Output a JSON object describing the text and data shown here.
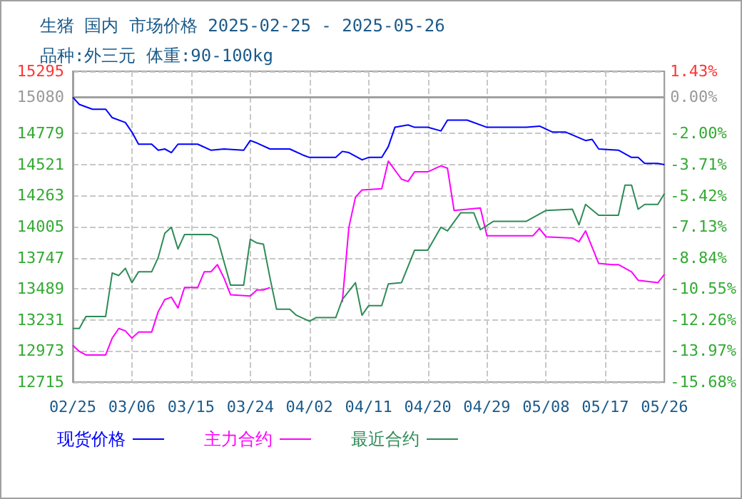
{
  "chart_data": {
    "type": "line",
    "title": "生猪 国内 市场价格 2025-02-25 - 2025-05-26",
    "subtitle": "品种:外三元 体重:90-100kg",
    "xlim": [
      "2025-02-25",
      "2025-05-26"
    ],
    "xticks": [
      {
        "value": "2025-02-25",
        "label": "02/25"
      },
      {
        "value": "2025-03-06",
        "label": "03/06"
      },
      {
        "value": "2025-03-15",
        "label": "03/15"
      },
      {
        "value": "2025-03-24",
        "label": "03/24"
      },
      {
        "value": "2025-04-02",
        "label": "04/02"
      },
      {
        "value": "2025-04-11",
        "label": "04/11"
      },
      {
        "value": "2025-04-20",
        "label": "04/20"
      },
      {
        "value": "2025-04-29",
        "label": "04/29"
      },
      {
        "value": "2025-05-08",
        "label": "05/08"
      },
      {
        "value": "2025-05-17",
        "label": "05/17"
      },
      {
        "value": "2025-05-26",
        "label": "05/26"
      }
    ],
    "ylim": [
      12715,
      15295
    ],
    "yticks": [
      15295,
      15080,
      14779,
      14521,
      14263,
      14005,
      13747,
      13489,
      13231,
      12973,
      12715
    ],
    "y2lim": [
      -15.68,
      1.43
    ],
    "y2ticks": [
      {
        "value": 1.43,
        "label": "1.43%"
      },
      {
        "value": 0,
        "label": "0.00%"
      },
      {
        "value": -2,
        "label": "-2.00%"
      },
      {
        "value": -3.71,
        "label": "-3.71%"
      },
      {
        "value": -5.42,
        "label": "-5.42%"
      },
      {
        "value": -7.13,
        "label": "-7.13%"
      },
      {
        "value": -8.84,
        "label": "-8.84%"
      },
      {
        "value": -10.55,
        "label": "-10.55%"
      },
      {
        "value": -12.26,
        "label": "-12.26%"
      },
      {
        "value": -13.97,
        "label": "-13.97%"
      },
      {
        "value": -15.68,
        "label": "-15.68%"
      }
    ],
    "ref_lines": [
      {
        "axis": "y2",
        "value": 0,
        "color": "#a0a0a0",
        "line_style": "solid"
      }
    ],
    "grid": true,
    "legend": "bottom",
    "marker": "none",
    "series": [
      {
        "name": "现货价格",
        "color": "#0000ff",
        "x": [
          "2025-02-25",
          "2025-02-26",
          "2025-02-28",
          "2025-03-02",
          "2025-03-03",
          "2025-03-05",
          "2025-03-06",
          "2025-03-07",
          "2025-03-09",
          "2025-03-10",
          "2025-03-11",
          "2025-03-12",
          "2025-03-13",
          "2025-03-16",
          "2025-03-18",
          "2025-03-20",
          "2025-03-23",
          "2025-03-24",
          "2025-03-25",
          "2025-03-27",
          "2025-03-30",
          "2025-04-01",
          "2025-04-02",
          "2025-04-06",
          "2025-04-07",
          "2025-04-08",
          "2025-04-10",
          "2025-04-11",
          "2025-04-13",
          "2025-04-14",
          "2025-04-15",
          "2025-04-17",
          "2025-04-18",
          "2025-04-20",
          "2025-04-22",
          "2025-04-23",
          "2025-04-26",
          "2025-04-29",
          "2025-05-05",
          "2025-05-07",
          "2025-05-09",
          "2025-05-11",
          "2025-05-14",
          "2025-05-15",
          "2025-05-16",
          "2025-05-19",
          "2025-05-21",
          "2025-05-22",
          "2025-05-23",
          "2025-05-25",
          "2025-05-26"
        ],
        "values": [
          15080,
          15020,
          14980,
          14980,
          14910,
          14870,
          14790,
          14690,
          14690,
          14640,
          14650,
          14620,
          14690,
          14690,
          14640,
          14650,
          14640,
          14720,
          14700,
          14650,
          14650,
          14600,
          14580,
          14580,
          14630,
          14620,
          14560,
          14580,
          14580,
          14670,
          14830,
          14850,
          14830,
          14830,
          14800,
          14890,
          14890,
          14830,
          14830,
          14840,
          14790,
          14790,
          14720,
          14730,
          14650,
          14640,
          14580,
          14580,
          14530,
          14530,
          14520
        ]
      },
      {
        "name": "主力合约",
        "color": "#ff00ff",
        "x": [
          "2025-02-25",
          "2025-02-26",
          "2025-02-27",
          "2025-03-02",
          "2025-03-03",
          "2025-03-04",
          "2025-03-05",
          "2025-03-06",
          "2025-03-07",
          "2025-03-09",
          "2025-03-10",
          "2025-03-11",
          "2025-03-12",
          "2025-03-13",
          "2025-03-14",
          "2025-03-16",
          "2025-03-17",
          "2025-03-18",
          "2025-03-19",
          "2025-03-20",
          "2025-03-21",
          "2025-03-24",
          "2025-03-25",
          "2025-03-26",
          "2025-03-27",
          "2025-03-28",
          "2025-04-07",
          "2025-04-08",
          "2025-04-09",
          "2025-04-10",
          "2025-04-13",
          "2025-04-14",
          "2025-04-16",
          "2025-04-17",
          "2025-04-18",
          "2025-04-20",
          "2025-04-22",
          "2025-04-23",
          "2025-04-24",
          "2025-04-28",
          "2025-04-29",
          "2025-05-06",
          "2025-05-07",
          "2025-05-08",
          "2025-05-12",
          "2025-05-13",
          "2025-05-14",
          "2025-05-16",
          "2025-05-18",
          "2025-05-19",
          "2025-05-21",
          "2025-05-22",
          "2025-05-25",
          "2025-05-26"
        ],
        "values": [
          13020,
          12970,
          12940,
          12940,
          13080,
          13160,
          13140,
          13080,
          13130,
          13130,
          13300,
          13400,
          13420,
          13330,
          13500,
          13500,
          13630,
          13630,
          13690,
          13580,
          13440,
          13430,
          13480,
          13480,
          13500,
          null,
          13380,
          14000,
          14250,
          14310,
          14320,
          14550,
          14400,
          14380,
          14460,
          14460,
          14510,
          14490,
          14140,
          14160,
          13930,
          13930,
          13990,
          13920,
          13910,
          13880,
          13970,
          13700,
          13690,
          13690,
          13630,
          13560,
          13540,
          13610
        ]
      },
      {
        "name": "最近合约",
        "color": "#2e8b57",
        "x": [
          "2025-02-25",
          "2025-02-26",
          "2025-02-27",
          "2025-03-02",
          "2025-03-03",
          "2025-03-04",
          "2025-03-05",
          "2025-03-06",
          "2025-03-07",
          "2025-03-09",
          "2025-03-10",
          "2025-03-11",
          "2025-03-12",
          "2025-03-13",
          "2025-03-14",
          "2025-03-18",
          "2025-03-19",
          "2025-03-21",
          "2025-03-23",
          "2025-03-24",
          "2025-03-25",
          "2025-03-26",
          "2025-03-27",
          "2025-03-28",
          "2025-03-30",
          "2025-03-31",
          "2025-04-02",
          "2025-04-03",
          "2025-04-06",
          "2025-04-07",
          "2025-04-09",
          "2025-04-10",
          "2025-04-11",
          "2025-04-13",
          "2025-04-14",
          "2025-04-16",
          "2025-04-18",
          "2025-04-20",
          "2025-04-22",
          "2025-04-23",
          "2025-04-25",
          "2025-04-27",
          "2025-04-28",
          "2025-04-30",
          "2025-05-05",
          "2025-05-08",
          "2025-05-12",
          "2025-05-13",
          "2025-05-14",
          "2025-05-16",
          "2025-05-19",
          "2025-05-20",
          "2025-05-21",
          "2025-05-22",
          "2025-05-23",
          "2025-05-25",
          "2025-05-26"
        ],
        "values": [
          13160,
          13160,
          13260,
          13260,
          13620,
          13600,
          13660,
          13540,
          13630,
          13630,
          13750,
          13950,
          14000,
          13820,
          13940,
          13940,
          13910,
          13520,
          13520,
          13900,
          13870,
          13860,
          13580,
          13320,
          13320,
          13270,
          13220,
          13250,
          13250,
          13400,
          13540,
          13270,
          13350,
          13350,
          13530,
          13540,
          13810,
          13810,
          14000,
          13970,
          14120,
          14120,
          13980,
          14050,
          14050,
          14140,
          14150,
          14020,
          14190,
          14100,
          14100,
          14350,
          14350,
          14150,
          14190,
          14190,
          14280
        ]
      }
    ]
  }
}
